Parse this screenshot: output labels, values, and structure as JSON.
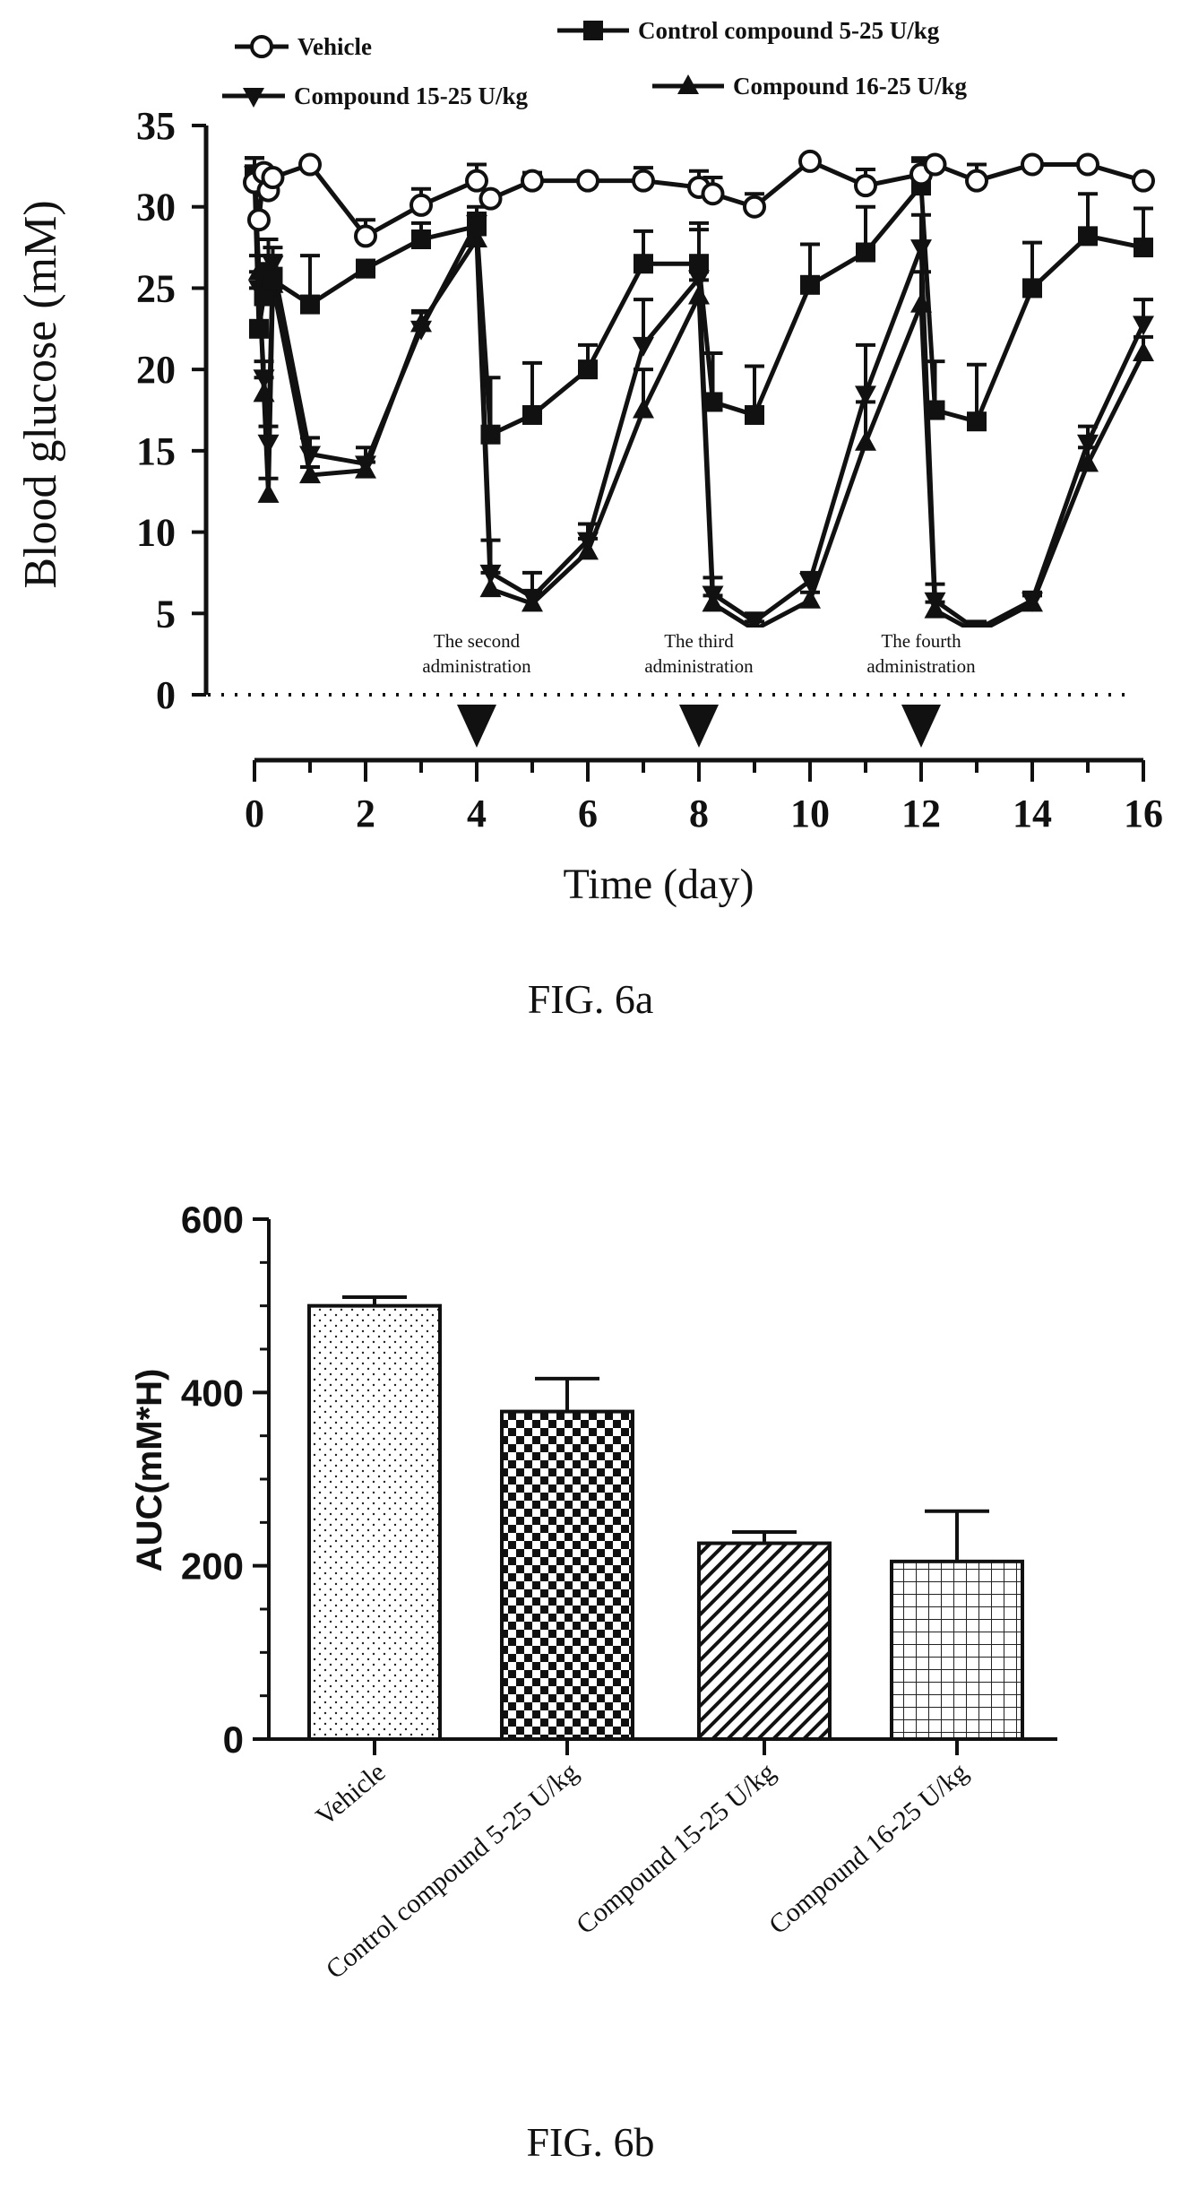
{
  "figure_a": {
    "caption": "FIG. 6a",
    "annotations": [
      {
        "day": 4,
        "lines": [
          "The second",
          "administration"
        ]
      },
      {
        "day": 8,
        "lines": [
          "The third",
          "administration"
        ]
      },
      {
        "day": 12,
        "lines": [
          "The fourth",
          "administration"
        ]
      }
    ]
  },
  "figure_b": {
    "caption": "FIG. 6b"
  },
  "chart_data": [
    {
      "type": "line",
      "title": "",
      "xlabel": "Time (day)",
      "ylabel": "Blood glucose (mM)",
      "xlim": [
        0,
        16
      ],
      "ylim": [
        0,
        35
      ],
      "xticks": [
        0,
        2,
        4,
        6,
        8,
        10,
        12,
        14,
        16
      ],
      "yticks": [
        0,
        5,
        10,
        15,
        20,
        25,
        30,
        35
      ],
      "grid": false,
      "legend": "top",
      "administration_days": [
        4,
        8,
        12
      ],
      "series": [
        {
          "name": "Vehicle",
          "marker": "open-circle",
          "x": [
            0,
            0.08,
            0.17,
            0.25,
            0.33,
            1,
            2,
            3,
            4,
            4.25,
            5,
            6,
            7,
            8,
            8.25,
            9,
            10,
            11,
            12,
            12.25,
            13,
            14,
            15,
            16
          ],
          "y": [
            31.5,
            29.2,
            32.1,
            31.0,
            31.8,
            32.6,
            28.2,
            30.1,
            31.6,
            30.5,
            31.6,
            31.6,
            31.6,
            31.2,
            30.8,
            30.0,
            32.8,
            31.3,
            32.0,
            32.6,
            31.6,
            32.6,
            32.6,
            31.6
          ],
          "err": [
            1.0,
            0,
            0,
            0,
            0,
            0,
            1.0,
            1.0,
            1.0,
            0,
            0.5,
            0,
            0.8,
            1.0,
            1.0,
            0.8,
            0,
            1.0,
            1.0,
            0,
            1.0,
            0,
            0,
            0
          ]
        },
        {
          "name": "Control compound  5-25 U/kg",
          "marker": "filled-square",
          "x": [
            0,
            0.08,
            0.17,
            0.25,
            0.33,
            1,
            2,
            3,
            4,
            4.25,
            5,
            6,
            7,
            8,
            8.25,
            9,
            10,
            11,
            12,
            12.25,
            13,
            14,
            15,
            16
          ],
          "y": [
            32.0,
            22.5,
            24.5,
            26.0,
            25.5,
            24.0,
            26.2,
            28.0,
            28.8,
            16.0,
            17.2,
            20.0,
            26.5,
            26.5,
            18.0,
            17.2,
            25.2,
            27.2,
            31.3,
            17.5,
            16.8,
            25.0,
            28.2,
            27.5
          ],
          "err": [
            1.0,
            2.5,
            1.5,
            2.0,
            1.5,
            3.0,
            0.5,
            1.0,
            0.8,
            3.5,
            3.2,
            1.5,
            2.0,
            2.5,
            3.0,
            3.0,
            2.5,
            2.8,
            1.5,
            3.0,
            3.5,
            2.8,
            2.6,
            2.4
          ]
        },
        {
          "name": "Compound 15-25 U/kg",
          "marker": "filled-triangle-down",
          "x": [
            0,
            0.08,
            0.17,
            0.25,
            0.33,
            1,
            2,
            3,
            4,
            4.25,
            5,
            6,
            7,
            8,
            8.25,
            9,
            10,
            11,
            12,
            12.25,
            13,
            14,
            15,
            16
          ],
          "y": [
            32.0,
            25.0,
            19.5,
            15.5,
            26.5,
            14.8,
            14.2,
            22.5,
            29.0,
            7.5,
            6.0,
            9.5,
            21.5,
            25.6,
            6.2,
            4.5,
            7.0,
            18.5,
            27.5,
            5.8,
            4.0,
            5.8,
            15.5,
            22.8
          ],
          "err": [
            1.0,
            1.0,
            1.0,
            1.0,
            1.0,
            1.0,
            1.0,
            1.0,
            1.0,
            2.0,
            1.5,
            1.0,
            2.8,
            3.0,
            1.0,
            0.5,
            0.5,
            3.0,
            2.0,
            1.0,
            0.5,
            0.5,
            1.0,
            1.5
          ]
        },
        {
          "name": "Compound 16-25 U/kg",
          "marker": "filled-triangle-up",
          "x": [
            0,
            0.08,
            0.17,
            0.25,
            0.33,
            1,
            2,
            3,
            4,
            4.25,
            5,
            6,
            7,
            8,
            8.25,
            9,
            10,
            11,
            12,
            12.25,
            13,
            14,
            15,
            16
          ],
          "y": [
            32.0,
            26.0,
            18.5,
            12.3,
            25.2,
            13.5,
            13.8,
            22.8,
            28.0,
            6.5,
            5.6,
            8.8,
            17.5,
            24.5,
            5.6,
            4.0,
            5.8,
            15.5,
            24.0,
            5.2,
            3.8,
            5.6,
            14.2,
            21.0
          ],
          "err": [
            1.0,
            1.0,
            1.0,
            1.0,
            1.0,
            0.5,
            0.5,
            0.8,
            1.0,
            1.0,
            0.8,
            0.8,
            2.5,
            1.0,
            0.5,
            0.5,
            0.5,
            2.5,
            2.0,
            0.5,
            0.5,
            0.5,
            1.0,
            1.0
          ]
        }
      ]
    },
    {
      "type": "bar",
      "title": "",
      "xlabel": "",
      "ylabel": "AUC(mM*H)",
      "ylim": [
        0,
        600
      ],
      "yticks": [
        0,
        200,
        400,
        600
      ],
      "grid": false,
      "categories": [
        "Vehicle",
        "Control compound 5-25 U/kg",
        "Compound 15-25 U/kg",
        "Compound 16-25 U/kg"
      ],
      "values": [
        500,
        378,
        226,
        205
      ],
      "errors": [
        10,
        38,
        13,
        58
      ],
      "patterns": [
        "dots",
        "checker",
        "diagonal",
        "grid"
      ]
    }
  ]
}
